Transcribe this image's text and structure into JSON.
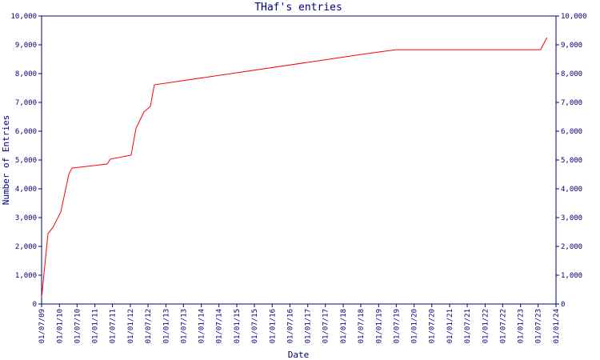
{
  "chart_data": {
    "type": "line",
    "title": "THaf's entries",
    "x_label": "Date",
    "y_label": "Number of Entries",
    "x": [
      "2009-07-01",
      "2009-09-05",
      "2009-10-24",
      "2010-01-15",
      "2010-04-07",
      "2010-05-10",
      "2011-05-07",
      "2011-06-09",
      "2012-01-09",
      "2012-02-28",
      "2012-05-20",
      "2012-07-25",
      "2012-09-04",
      "2018-09-17",
      "2019-07-01",
      "2023-07-26",
      "2023-09-30"
    ],
    "series": [
      {
        "name": "THaf's entries",
        "color": "#ff0000",
        "values": [
          220,
          2450,
          2650,
          3200,
          4500,
          4720,
          4860,
          5030,
          5170,
          6100,
          6670,
          6860,
          7610,
          8700,
          8830,
          8830,
          9250
        ]
      }
    ],
    "xlim": [
      "2009-07-01",
      "2024-01-01"
    ],
    "xticks": [
      {
        "value": "2009-07-01",
        "label": "01/07/09"
      },
      {
        "value": "2010-01-01",
        "label": "01/01/10"
      },
      {
        "value": "2010-07-01",
        "label": "01/07/10"
      },
      {
        "value": "2011-01-01",
        "label": "01/01/11"
      },
      {
        "value": "2011-07-01",
        "label": "01/07/11"
      },
      {
        "value": "2012-01-01",
        "label": "01/01/12"
      },
      {
        "value": "2012-07-01",
        "label": "01/07/12"
      },
      {
        "value": "2013-01-01",
        "label": "01/01/13"
      },
      {
        "value": "2013-07-01",
        "label": "01/07/13"
      },
      {
        "value": "2014-01-01",
        "label": "01/01/14"
      },
      {
        "value": "2014-07-01",
        "label": "01/07/14"
      },
      {
        "value": "2015-01-01",
        "label": "01/01/15"
      },
      {
        "value": "2015-07-01",
        "label": "01/07/15"
      },
      {
        "value": "2016-01-01",
        "label": "01/01/16"
      },
      {
        "value": "2016-07-01",
        "label": "01/07/16"
      },
      {
        "value": "2017-01-01",
        "label": "01/01/17"
      },
      {
        "value": "2017-07-01",
        "label": "01/07/17"
      },
      {
        "value": "2018-01-01",
        "label": "01/01/18"
      },
      {
        "value": "2018-07-01",
        "label": "01/07/18"
      },
      {
        "value": "2019-01-01",
        "label": "01/01/19"
      },
      {
        "value": "2019-07-01",
        "label": "01/07/19"
      },
      {
        "value": "2020-01-01",
        "label": "01/01/20"
      },
      {
        "value": "2020-07-01",
        "label": "01/07/20"
      },
      {
        "value": "2021-01-01",
        "label": "01/01/21"
      },
      {
        "value": "2021-07-01",
        "label": "01/07/21"
      },
      {
        "value": "2022-01-01",
        "label": "01/01/22"
      },
      {
        "value": "2022-07-01",
        "label": "01/07/22"
      },
      {
        "value": "2023-01-01",
        "label": "01/01/23"
      },
      {
        "value": "2023-07-01",
        "label": "01/07/23"
      },
      {
        "value": "2024-01-01",
        "label": "01/01/24"
      }
    ],
    "ylim": [
      0,
      10000
    ],
    "yticks": [
      0,
      {
        "value": 1000,
        "label": "1,000"
      },
      {
        "value": 2000,
        "label": "2,000"
      },
      {
        "value": 3000,
        "label": "3,000"
      },
      {
        "value": 4000,
        "label": "4,000"
      },
      {
        "value": 5000,
        "label": "5,000"
      },
      {
        "value": 6000,
        "label": "6,000"
      },
      {
        "value": 7000,
        "label": "7,000"
      },
      {
        "value": 8000,
        "label": "8,000"
      },
      {
        "value": 9000,
        "label": "9,000"
      },
      {
        "value": 10000,
        "label": "10,000"
      }
    ],
    "y2lim": [
      0,
      10000
    ],
    "y2ticks": [
      0,
      {
        "value": 1000,
        "label": "1,000"
      },
      {
        "value": 2000,
        "label": "2,000"
      },
      {
        "value": 3000,
        "label": "3,000"
      },
      {
        "value": 4000,
        "label": "4,000"
      },
      {
        "value": 5000,
        "label": "5,000"
      },
      {
        "value": 6000,
        "label": "6,000"
      },
      {
        "value": 7000,
        "label": "7,000"
      },
      {
        "value": 8000,
        "label": "8,000"
      },
      {
        "value": 9000,
        "label": "9,000"
      },
      {
        "value": 10000,
        "label": "10,000"
      }
    ]
  }
}
